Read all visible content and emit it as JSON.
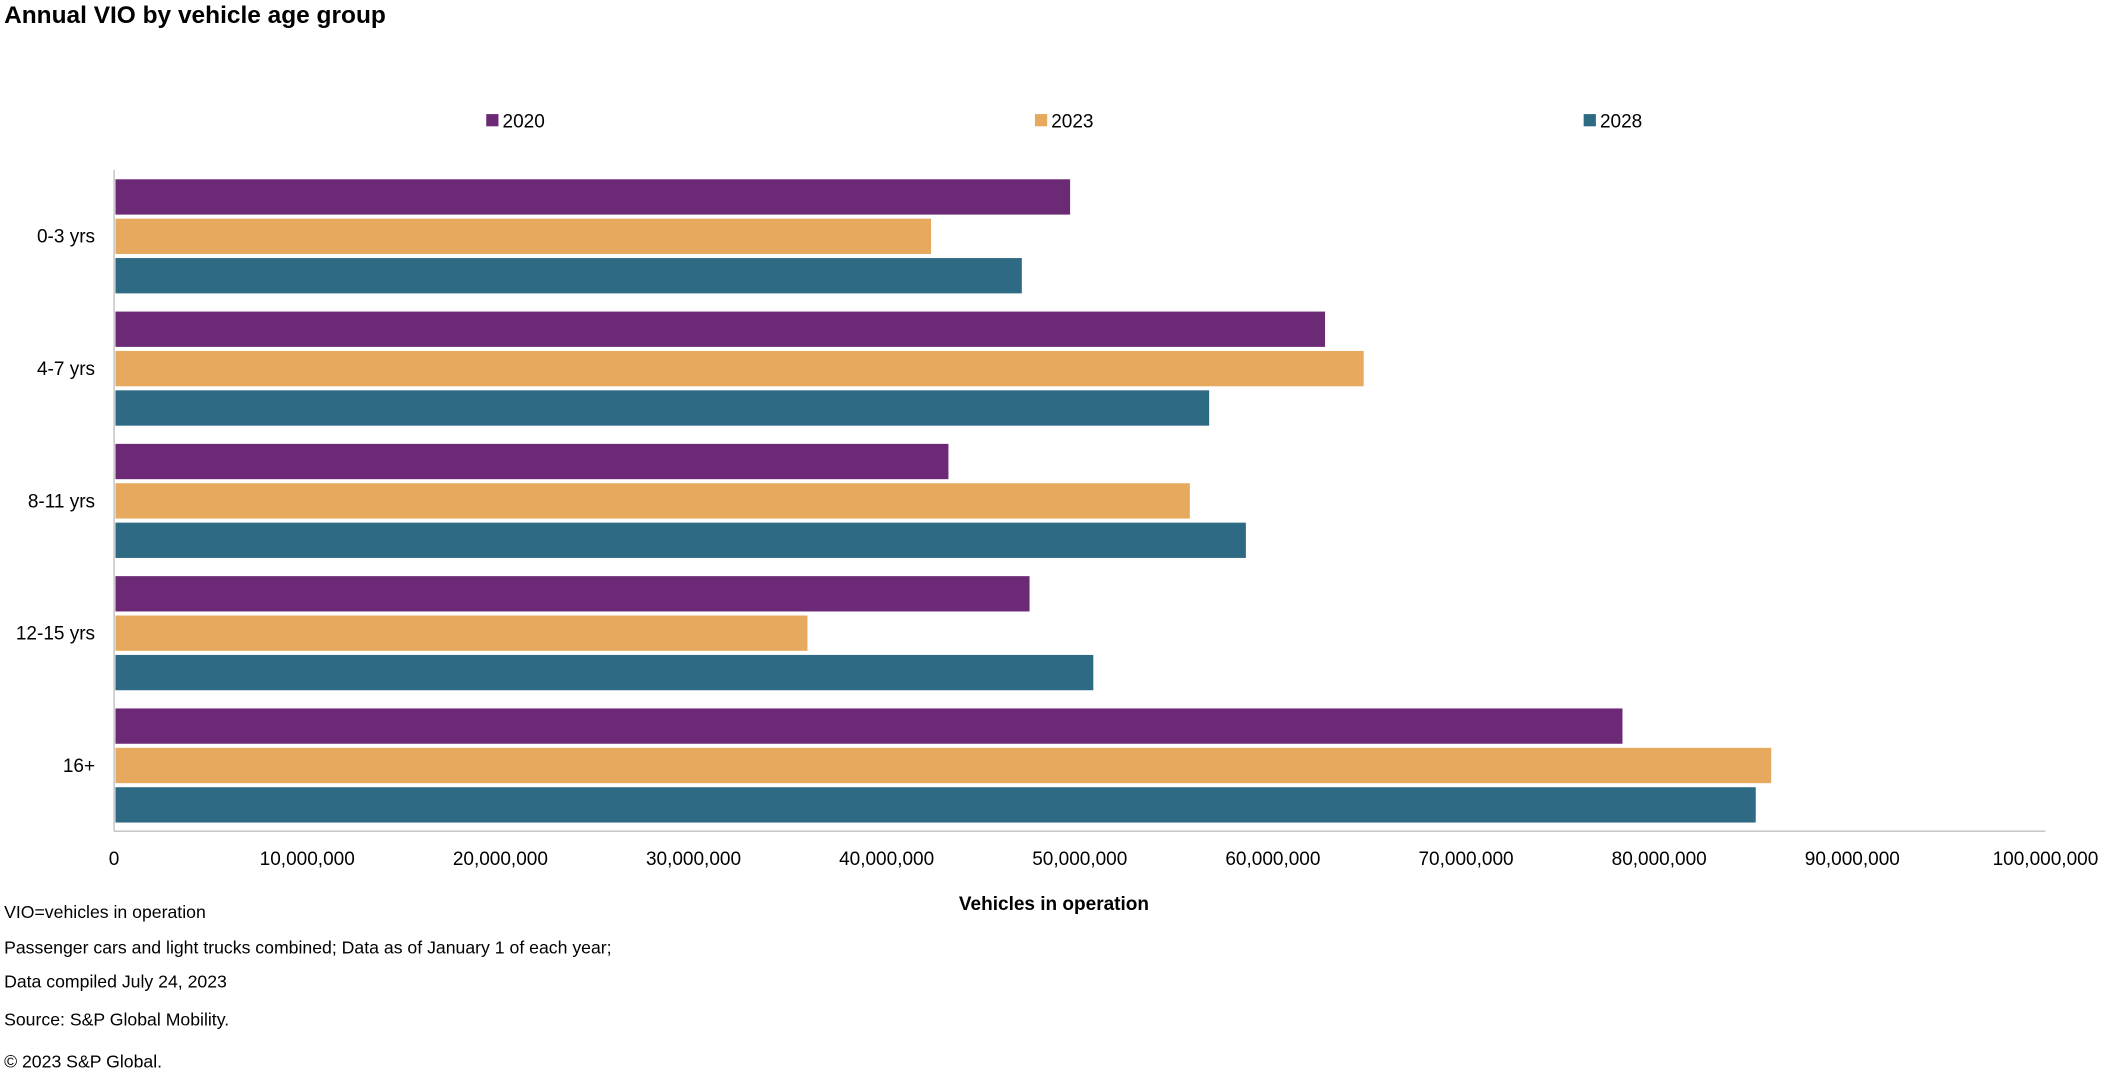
{
  "chart_data": {
    "type": "bar",
    "orientation": "horizontal",
    "title": "Annual VIO by vehicle age group",
    "xlabel": "Vehicles in operation",
    "ylabel": "",
    "categories": [
      "0-3 yrs",
      "4-7 yrs",
      "8-11 yrs",
      "12-15 yrs",
      "16+"
    ],
    "series": [
      {
        "name": "2020",
        "color": "#6c2a76",
        "values": [
          49500000,
          62700000,
          43200000,
          47400000,
          78100000
        ]
      },
      {
        "name": "2023",
        "color": "#e6a95e",
        "values": [
          42300000,
          64700000,
          55700000,
          35900000,
          85800000
        ]
      },
      {
        "name": "2028",
        "color": "#2e6a84",
        "values": [
          47000000,
          56700000,
          58600000,
          50700000,
          85000000
        ]
      }
    ],
    "xlim": [
      0,
      100000000
    ],
    "xticks": [
      "0",
      "10,000,000",
      "20,000,000",
      "30,000,000",
      "40,000,000",
      "50,000,000",
      "60,000,000",
      "70,000,000",
      "80,000,000",
      "90,000,000",
      "100,000,000"
    ],
    "grid": false,
    "legend": "top"
  },
  "notes": [
    "VIO=vehicles in operation",
    "Passenger cars and light trucks combined; Data as of January 1 of each year;",
    "Data compiled July 24, 2023",
    "Source: S&P Global Mobility.",
    "© 2023 S&P Global."
  ]
}
